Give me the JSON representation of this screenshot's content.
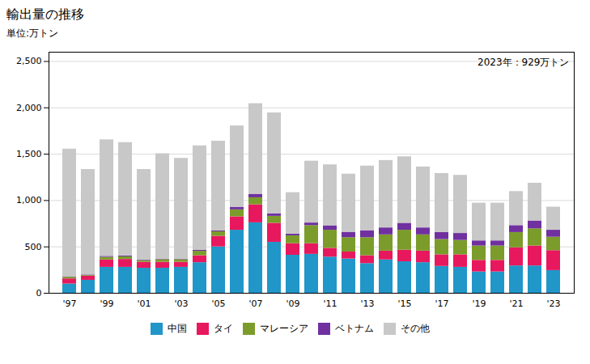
{
  "chart_data": {
    "type": "bar",
    "stacked": true,
    "title": "輸出量の推移",
    "ylabel": "単位:万トン",
    "annotation": "2023年：929万トン",
    "categories": [
      "'97",
      null,
      "'99",
      null,
      "'01",
      null,
      "'03",
      null,
      "'05",
      null,
      "'07",
      null,
      "'09",
      null,
      "'11",
      null,
      "'13",
      null,
      "'15",
      null,
      "'17",
      null,
      "'19",
      null,
      "'21",
      null,
      "'23"
    ],
    "series": [
      {
        "name": "中国",
        "color": "#2196C8",
        "values": [
          100,
          140,
          280,
          280,
          270,
          270,
          280,
          330,
          500,
          680,
          760,
          550,
          410,
          420,
          390,
          370,
          320,
          360,
          340,
          330,
          290,
          280,
          230,
          230,
          295,
          295,
          245
        ]
      },
      {
        "name": "タイ",
        "color": "#E8185E",
        "values": [
          55,
          45,
          80,
          85,
          65,
          65,
          55,
          75,
          115,
          145,
          195,
          205,
          125,
          115,
          95,
          75,
          85,
          95,
          125,
          125,
          125,
          135,
          125,
          125,
          195,
          215,
          215
        ]
      },
      {
        "name": "マレーシア",
        "color": "#7B9C2A",
        "values": [
          18,
          8,
          28,
          28,
          18,
          28,
          28,
          48,
          48,
          75,
          75,
          75,
          85,
          195,
          195,
          155,
          195,
          175,
          215,
          175,
          165,
          155,
          155,
          155,
          165,
          185,
          145
        ]
      },
      {
        "name": "ベトナム",
        "color": "#7030A0",
        "values": [
          5,
          5,
          10,
          10,
          5,
          5,
          5,
          10,
          10,
          28,
          38,
          28,
          18,
          28,
          48,
          58,
          75,
          75,
          75,
          75,
          75,
          75,
          55,
          55,
          75,
          85,
          75
        ]
      },
      {
        "name": "その他",
        "color": "#C8C8C8",
        "values": [
          1377,
          1137,
          1257,
          1222,
          977,
          1137,
          1087,
          1127,
          967,
          877,
          977,
          1087,
          447,
          667,
          657,
          627,
          697,
          727,
          717,
          657,
          637,
          627,
          407,
          407,
          367,
          407,
          249
        ]
      }
    ],
    "ylim": [
      0,
      2600
    ],
    "yticks": [
      0,
      500,
      {
        "value": 1000,
        "label": "1,000"
      },
      {
        "value": 1500,
        "label": "1,500"
      },
      {
        "value": 2000,
        "label": "2,000"
      },
      {
        "value": 2500,
        "label": "2,500"
      }
    ],
    "grid": true,
    "legend": "bottom"
  }
}
